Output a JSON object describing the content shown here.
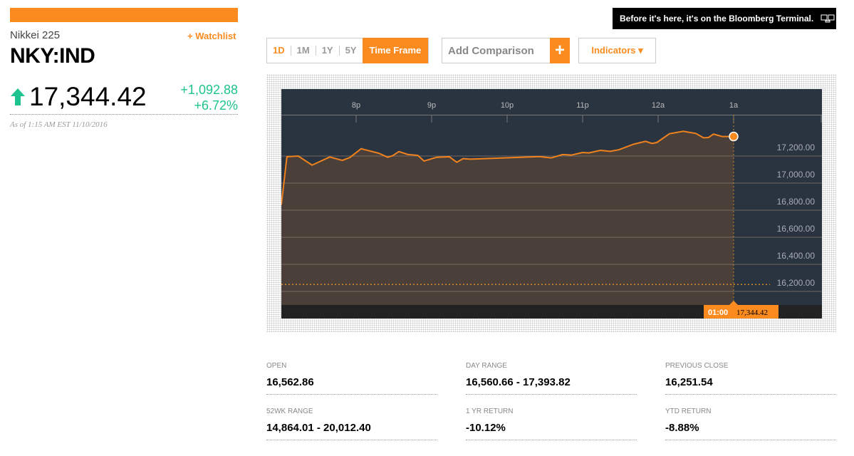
{
  "header": {
    "name": "Nikkei 225",
    "watchlist_label": "+ Watchlist",
    "ticker": "NKY:IND",
    "price": "17,344.42",
    "direction": "up",
    "change": "+1,092.88",
    "change_pct": "+6.72%",
    "as_of": "As of 1:15 AM EST 11/10/2016"
  },
  "banner": {
    "text": "Before it's here, it's on the Bloomberg Terminal.",
    "icon": "terminal-icon"
  },
  "toolbar": {
    "ranges": [
      "1D",
      "1M",
      "1Y",
      "5Y"
    ],
    "selected_range": "1D",
    "timeframe_label": "Time Frame",
    "comparison_placeholder": "Add Comparison",
    "comparison_add": "+",
    "indicators_label": "Indicators ▾"
  },
  "colors": {
    "accent": "#fb8b1e",
    "up": "#1ec48f",
    "plot_bg": "#2a3440",
    "area_fill": "#4a4039"
  },
  "chart_data": {
    "type": "area",
    "x_ticks": [
      "8p",
      "9p",
      "10p",
      "11p",
      "12a",
      "1a"
    ],
    "y_ticks": [
      "17,200.00",
      "17,000.00",
      "16,800.00",
      "16,600.00",
      "16,400.00",
      "16,200.00"
    ],
    "y_tick_values": [
      17200,
      17000,
      16800,
      16600,
      16400,
      16200
    ],
    "ylim": [
      16100,
      17500
    ],
    "xlim": [
      "19:00",
      "02:10"
    ],
    "grid": true,
    "previous_close": 16251.54,
    "cursor": {
      "time_label": "01:00",
      "value_label": "17,344.42"
    },
    "points": [
      [
        "19:01",
        16840
      ],
      [
        "19:05",
        17195
      ],
      [
        "19:14",
        17200
      ],
      [
        "19:25",
        17133
      ],
      [
        "19:39",
        17193
      ],
      [
        "19:49",
        17168
      ],
      [
        "19:55",
        17189
      ],
      [
        "20:04",
        17254
      ],
      [
        "20:18",
        17221
      ],
      [
        "20:25",
        17191
      ],
      [
        "20:29",
        17202
      ],
      [
        "20:34",
        17233
      ],
      [
        "20:41",
        17212
      ],
      [
        "20:49",
        17205
      ],
      [
        "20:54",
        17163
      ],
      [
        "21:04",
        17191
      ],
      [
        "21:14",
        17195
      ],
      [
        "21:20",
        17154
      ],
      [
        "21:25",
        17181
      ],
      [
        "21:31",
        17177
      ],
      [
        "22:26",
        17196
      ],
      [
        "22:35",
        17186
      ],
      [
        "22:44",
        17211
      ],
      [
        "22:51",
        17207
      ],
      [
        "23:00",
        17226
      ],
      [
        "23:05",
        17223
      ],
      [
        "23:14",
        17242
      ],
      [
        "23:22",
        17235
      ],
      [
        "23:29",
        17247
      ],
      [
        "23:40",
        17286
      ],
      [
        "23:50",
        17309
      ],
      [
        "23:55",
        17293
      ],
      [
        "23:59",
        17300
      ],
      [
        "00:09",
        17365
      ],
      [
        "00:20",
        17383
      ],
      [
        "00:30",
        17367
      ],
      [
        "00:36",
        17335
      ],
      [
        "00:40",
        17337
      ],
      [
        "00:44",
        17362
      ],
      [
        "00:51",
        17344
      ],
      [
        "01:00",
        17344.42
      ]
    ]
  },
  "stats": [
    {
      "label": "OPEN",
      "value": "16,562.86"
    },
    {
      "label": "DAY RANGE",
      "value": "16,560.66 - 17,393.82"
    },
    {
      "label": "PREVIOUS CLOSE",
      "value": "16,251.54"
    },
    {
      "label": "52WK RANGE",
      "value": "14,864.01 - 20,012.40"
    },
    {
      "label": "1 YR RETURN",
      "value": "-10.12%"
    },
    {
      "label": "YTD RETURN",
      "value": "-8.88%"
    }
  ]
}
